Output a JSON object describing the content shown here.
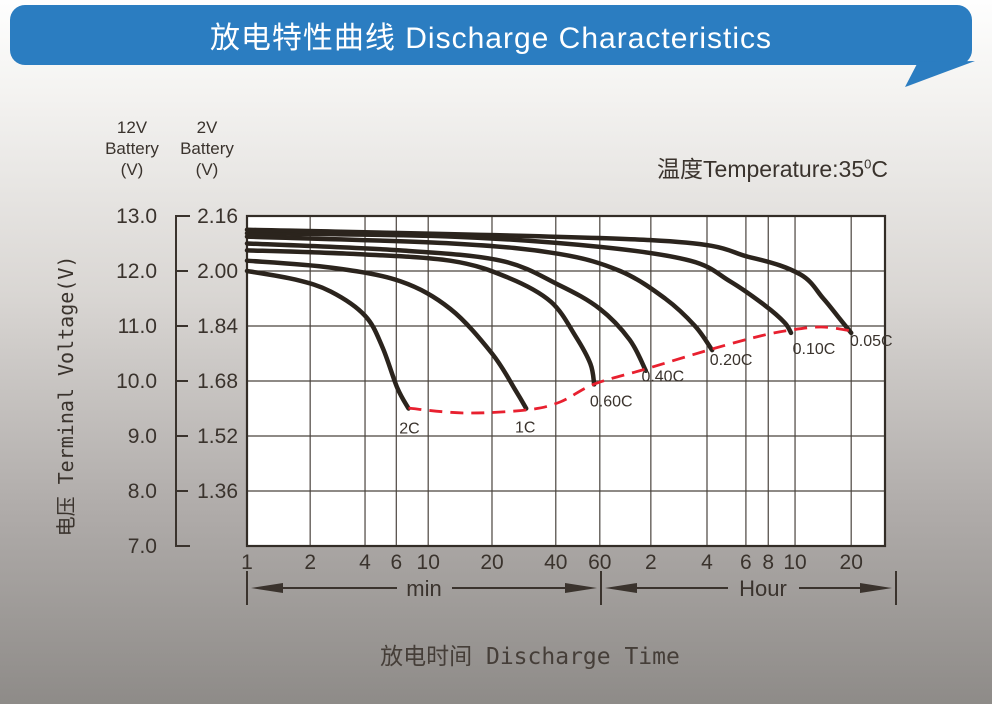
{
  "banner": {
    "title": "放电特性曲线 Discharge Characteristics",
    "bg_color": "#2b7dc1",
    "tail_highlight_color": "#b9cfe6"
  },
  "annotation": {
    "temp_prefix": "温度Temperature:35",
    "temp_sup": "0",
    "temp_unit": "C"
  },
  "chart_data": {
    "type": "line",
    "title": "放电特性曲线 Discharge Characteristics",
    "xlabel": "放电时间 Discharge Time",
    "ylabel": "电压 Terminal Voltage(V)",
    "x_scale": "log-time-minutes",
    "grid": true,
    "curve_color": "#2b241d",
    "grid_color": "#4a443e",
    "border_color": "#332d27",
    "text_color": "#3a332d",
    "y_axis_12v": {
      "header": "12V\nBattery\n(V)",
      "ticks": [
        "13.0",
        "12.0",
        "11.0",
        "10.0",
        "9.0",
        "8.0",
        "7.0"
      ]
    },
    "y_axis_2v": {
      "header": "2V\nBattery\n(V)",
      "ticks": [
        "2.16",
        "2.00",
        "1.84",
        "1.68",
        "1.52",
        "1.36"
      ]
    },
    "y_range_2v": [
      1.2,
      2.16
    ],
    "x_unit_regions": [
      {
        "label": "min",
        "from_min": 1,
        "to_min": 60
      },
      {
        "label": "Hour",
        "from_min": 60,
        "to_min": 1800
      }
    ],
    "x_ticks": [
      {
        "label": "1",
        "t": 1,
        "f": 0.0
      },
      {
        "label": "2",
        "t": 2,
        "f": 0.099
      },
      {
        "label": "4",
        "t": 4,
        "f": 0.185
      },
      {
        "label": "6",
        "t": 6,
        "f": 0.234
      },
      {
        "label": "10",
        "t": 10,
        "f": 0.284
      },
      {
        "label": "20",
        "t": 20,
        "f": 0.384
      },
      {
        "label": "40",
        "t": 40,
        "f": 0.484
      },
      {
        "label": "60",
        "t": 60,
        "f": 0.553
      },
      {
        "label": "2",
        "t": 120,
        "f": 0.633
      },
      {
        "label": "4",
        "t": 240,
        "f": 0.721
      },
      {
        "label": "6",
        "t": 360,
        "f": 0.782
      },
      {
        "label": "8",
        "t": 480,
        "f": 0.817
      },
      {
        "label": "10",
        "t": 600,
        "f": 0.859
      },
      {
        "label": "20",
        "t": 1200,
        "f": 0.947
      },
      {
        "label": "",
        "t": 1800,
        "f": 1.0
      }
    ],
    "series": [
      {
        "name": "2C",
        "points": [
          [
            1,
            2.0
          ],
          [
            1.7,
            1.975
          ],
          [
            2.6,
            1.94
          ],
          [
            4,
            1.87
          ],
          [
            5,
            1.78
          ],
          [
            6.1,
            1.66
          ],
          [
            7.3,
            1.6
          ]
        ]
      },
      {
        "name": "1C",
        "points": [
          [
            1,
            2.03
          ],
          [
            2.6,
            2.01
          ],
          [
            6.4,
            1.97
          ],
          [
            12.7,
            1.89
          ],
          [
            20,
            1.76
          ],
          [
            26,
            1.65
          ],
          [
            29,
            1.6
          ]
        ]
      },
      {
        "name": "0.60C",
        "points": [
          [
            1,
            2.06
          ],
          [
            3.3,
            2.05
          ],
          [
            12.7,
            2.03
          ],
          [
            24,
            1.98
          ],
          [
            38,
            1.91
          ],
          [
            48,
            1.81
          ],
          [
            55,
            1.73
          ],
          [
            57,
            1.67
          ]
        ]
      },
      {
        "name": "0.40C",
        "points": [
          [
            1,
            2.08
          ],
          [
            6.4,
            2.06
          ],
          [
            22,
            2.03
          ],
          [
            41,
            1.96
          ],
          [
            60,
            1.89
          ],
          [
            90,
            1.8
          ],
          [
            112,
            1.71
          ]
        ]
      },
      {
        "name": "0.20C",
        "points": [
          [
            1,
            2.1
          ],
          [
            13,
            2.08
          ],
          [
            41,
            2.05
          ],
          [
            79,
            2.0
          ],
          [
            143,
            1.92
          ],
          [
            207,
            1.84
          ],
          [
            253,
            1.77
          ]
        ]
      },
      {
        "name": "0.10C",
        "points": [
          [
            1,
            2.11
          ],
          [
            13,
            2.1
          ],
          [
            60,
            2.07
          ],
          [
            195,
            2.03
          ],
          [
            305,
            1.97
          ],
          [
            460,
            1.9
          ],
          [
            550,
            1.85
          ],
          [
            580,
            1.82
          ]
        ]
      },
      {
        "name": "0.05C",
        "points": [
          [
            1,
            2.12
          ],
          [
            120,
            2.09
          ],
          [
            380,
            2.04
          ],
          [
            640,
            1.99
          ],
          [
            850,
            1.92
          ],
          [
            1045,
            1.86
          ],
          [
            1200,
            1.82
          ]
        ]
      }
    ],
    "end_voltage_locus": {
      "style": "dashed",
      "color": "#e8202f",
      "points": [
        [
          7.3,
          1.601
        ],
        [
          14.9,
          1.587
        ],
        [
          29.3,
          1.596
        ],
        [
          41.6,
          1.619
        ],
        [
          57,
          1.671
        ],
        [
          112,
          1.715
        ],
        [
          253,
          1.773
        ],
        [
          433,
          1.811
        ],
        [
          578,
          1.828
        ],
        [
          830,
          1.837
        ],
        [
          1200,
          1.826
        ]
      ]
    }
  }
}
